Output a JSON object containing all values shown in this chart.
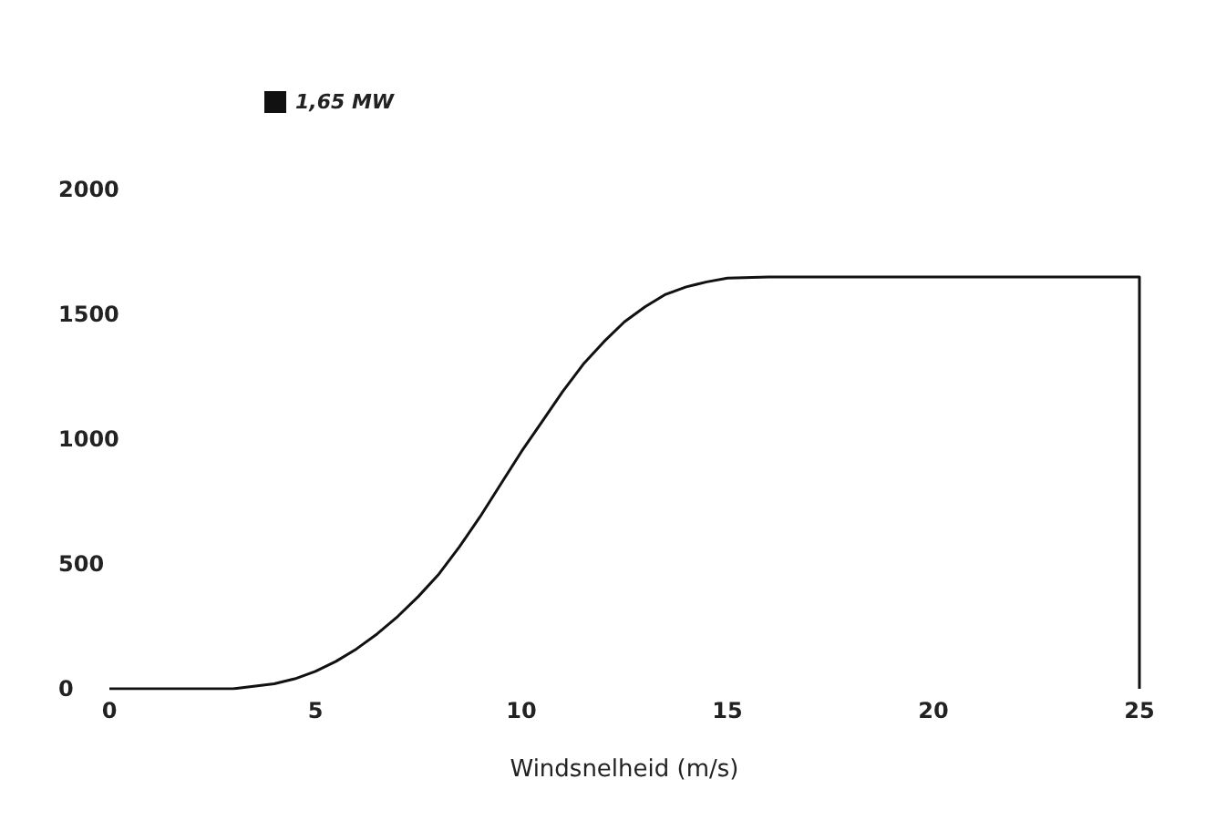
{
  "chart_data": {
    "type": "line",
    "xlabel": "Windsnelheid (m/s)",
    "series": [
      {
        "name": "1,65 MW",
        "color": "#111111",
        "x": [
          0,
          1,
          2,
          2.5,
          3,
          3.5,
          4,
          4.5,
          5,
          5.5,
          6,
          6.5,
          7,
          7.5,
          8,
          8.5,
          9,
          9.5,
          10,
          10.5,
          11,
          11.5,
          12,
          12.5,
          13,
          13.5,
          14,
          14.5,
          15,
          16,
          17,
          18,
          20,
          22,
          25,
          25
        ],
        "values": [
          0,
          0,
          0,
          0,
          0,
          10,
          20,
          40,
          70,
          110,
          160,
          220,
          290,
          370,
          460,
          570,
          690,
          820,
          950,
          1070,
          1190,
          1300,
          1390,
          1470,
          1530,
          1580,
          1610,
          1630,
          1645,
          1650,
          1650,
          1650,
          1650,
          1650,
          1650,
          0
        ]
      }
    ],
    "xlim": [
      0,
      25
    ],
    "xticks": [
      0,
      5,
      10,
      15,
      20,
      25
    ],
    "ylim": [
      0,
      2000
    ],
    "yticks": [
      0,
      500,
      1000,
      1500,
      2000
    ],
    "grid": false,
    "legend": "top left",
    "marker": "none",
    "line_style": "solid"
  }
}
